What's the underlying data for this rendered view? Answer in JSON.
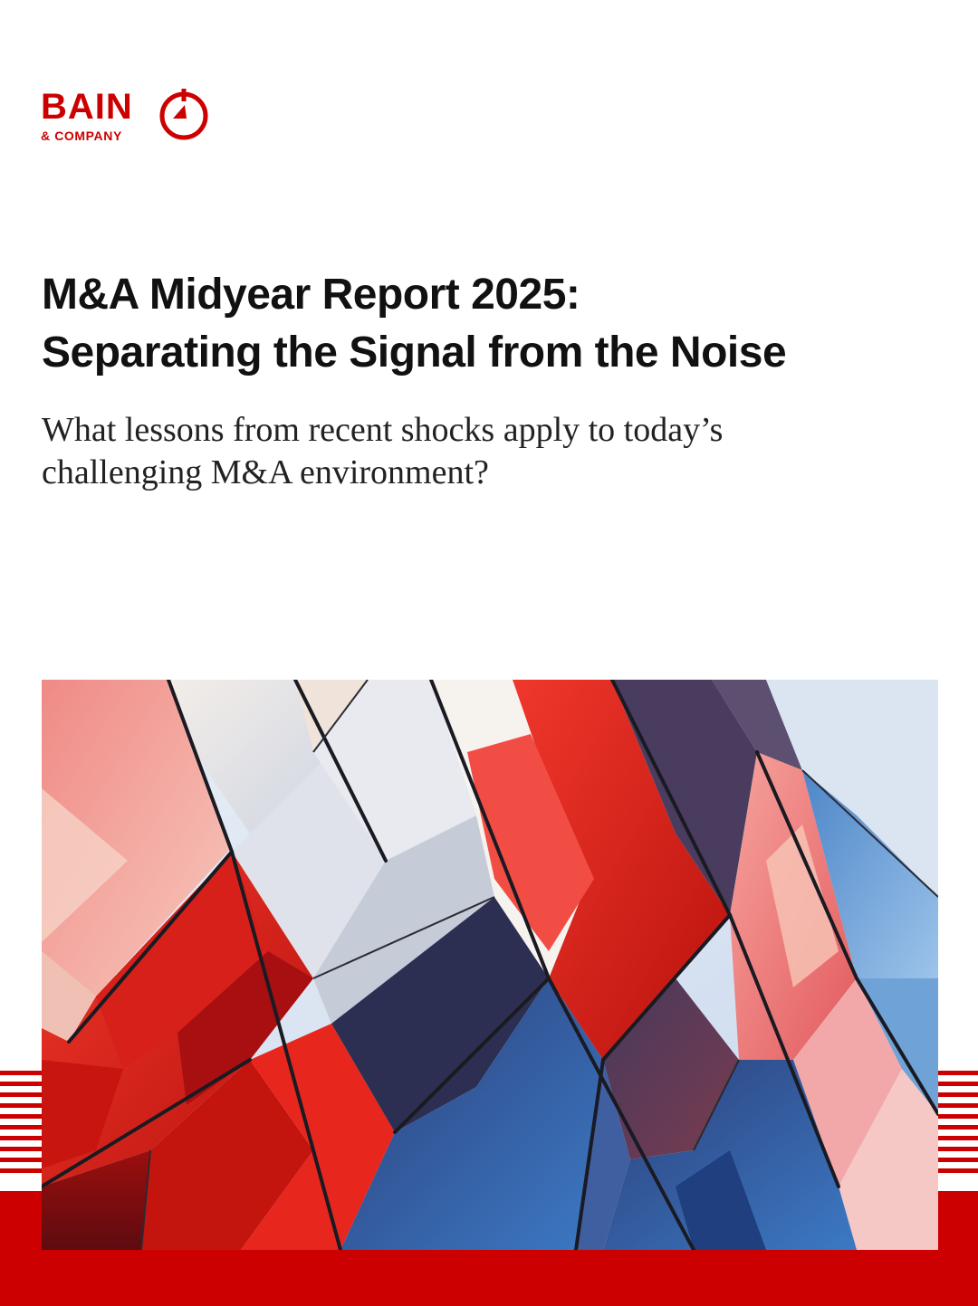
{
  "brand": {
    "name": "BAIN",
    "sub": "& COMPANY",
    "color": "#cc0000",
    "mark_icon": "bain-compass-icon"
  },
  "title_lines": [
    "M&A Midyear Report 2025:",
    "Separating the Signal from the Noise"
  ],
  "subtitle_lines": [
    "What lessons from recent shocks apply to today’s",
    "challenging M&A environment?"
  ],
  "cover_image": {
    "description_icon": "glass-facade-image",
    "palette": [
      "#cc1a14",
      "#f4433b",
      "#d9dde6",
      "#3a6fb5",
      "#2a2f55",
      "#f2b8b0"
    ]
  },
  "colors": {
    "accent": "#cc0000",
    "text": "#111111"
  }
}
